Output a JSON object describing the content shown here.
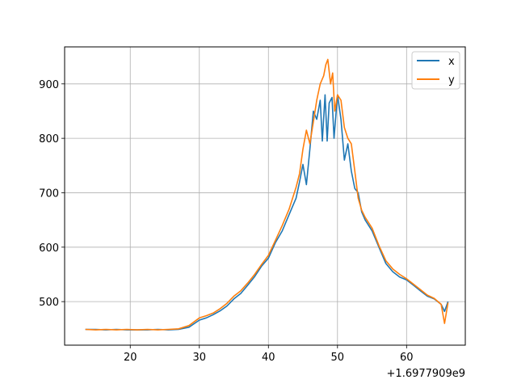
{
  "chart_data": {
    "type": "line",
    "title": "",
    "xlabel": "",
    "ylabel": "",
    "x_offset_label": "+1.6977909e9",
    "xlim": [
      10.5,
      68.5
    ],
    "ylim": [
      420,
      968
    ],
    "x_ticks": [
      20,
      30,
      40,
      50,
      60
    ],
    "y_ticks": [
      500,
      600,
      700,
      800,
      900
    ],
    "grid": true,
    "legend_position": "top-right",
    "series": [
      {
        "name": "x",
        "color": "#1f77b4",
        "points": [
          [
            13.5,
            449
          ],
          [
            15,
            449
          ],
          [
            16.5,
            448
          ],
          [
            18,
            449
          ],
          [
            19.5,
            448
          ],
          [
            21,
            448
          ],
          [
            22.5,
            448
          ],
          [
            24,
            449
          ],
          [
            25.5,
            448
          ],
          [
            27,
            449
          ],
          [
            28.5,
            453
          ],
          [
            30,
            466
          ],
          [
            31,
            470
          ],
          [
            32,
            476
          ],
          [
            33,
            483
          ],
          [
            34,
            492
          ],
          [
            35,
            505
          ],
          [
            36,
            515
          ],
          [
            37,
            530
          ],
          [
            38,
            546
          ],
          [
            39,
            565
          ],
          [
            40,
            580
          ],
          [
            41,
            608
          ],
          [
            42,
            630
          ],
          [
            43,
            660
          ],
          [
            44,
            690
          ],
          [
            44.5,
            720
          ],
          [
            45,
            752
          ],
          [
            45.5,
            715
          ],
          [
            46,
            780
          ],
          [
            46.5,
            850
          ],
          [
            47,
            835
          ],
          [
            47.5,
            870
          ],
          [
            47.8,
            795
          ],
          [
            48.2,
            880
          ],
          [
            48.5,
            795
          ],
          [
            48.8,
            865
          ],
          [
            49.2,
            875
          ],
          [
            49.5,
            800
          ],
          [
            50,
            880
          ],
          [
            50.5,
            835
          ],
          [
            51,
            760
          ],
          [
            51.5,
            790
          ],
          [
            52,
            740
          ],
          [
            52.5,
            708
          ],
          [
            53,
            700
          ],
          [
            53.5,
            665
          ],
          [
            54,
            650
          ],
          [
            55,
            630
          ],
          [
            56,
            600
          ],
          [
            57,
            570
          ],
          [
            58,
            555
          ],
          [
            59,
            545
          ],
          [
            60,
            540
          ],
          [
            61,
            530
          ],
          [
            62,
            520
          ],
          [
            63,
            510
          ],
          [
            64,
            505
          ],
          [
            65,
            495
          ],
          [
            65.5,
            482
          ],
          [
            66,
            500
          ]
        ]
      },
      {
        "name": "y",
        "color": "#ff7f0e",
        "points": [
          [
            13.5,
            449
          ],
          [
            15,
            448
          ],
          [
            16.5,
            449
          ],
          [
            18,
            448
          ],
          [
            19.5,
            449
          ],
          [
            21,
            448
          ],
          [
            22.5,
            449
          ],
          [
            24,
            448
          ],
          [
            25.5,
            449
          ],
          [
            27,
            450
          ],
          [
            28.5,
            456
          ],
          [
            30,
            470
          ],
          [
            31,
            474
          ],
          [
            32,
            479
          ],
          [
            33,
            487
          ],
          [
            34,
            497
          ],
          [
            35,
            510
          ],
          [
            36,
            520
          ],
          [
            37,
            534
          ],
          [
            38,
            550
          ],
          [
            39,
            568
          ],
          [
            40,
            585
          ],
          [
            41,
            612
          ],
          [
            42,
            640
          ],
          [
            43,
            670
          ],
          [
            44,
            710
          ],
          [
            44.5,
            735
          ],
          [
            45,
            780
          ],
          [
            45.5,
            815
          ],
          [
            46,
            790
          ],
          [
            46.5,
            830
          ],
          [
            47,
            870
          ],
          [
            47.5,
            900
          ],
          [
            48,
            915
          ],
          [
            48.3,
            935
          ],
          [
            48.6,
            945
          ],
          [
            49,
            900
          ],
          [
            49.3,
            920
          ],
          [
            49.6,
            850
          ],
          [
            50,
            880
          ],
          [
            50.5,
            870
          ],
          [
            51,
            820
          ],
          [
            51.5,
            800
          ],
          [
            52,
            790
          ],
          [
            52.5,
            740
          ],
          [
            53,
            690
          ],
          [
            53.5,
            668
          ],
          [
            54,
            655
          ],
          [
            55,
            635
          ],
          [
            56,
            603
          ],
          [
            57,
            575
          ],
          [
            58,
            560
          ],
          [
            59,
            550
          ],
          [
            60,
            542
          ],
          [
            61,
            532
          ],
          [
            62,
            522
          ],
          [
            63,
            512
          ],
          [
            64,
            506
          ],
          [
            65,
            495
          ],
          [
            65.5,
            460
          ],
          [
            66,
            498
          ]
        ]
      }
    ]
  }
}
